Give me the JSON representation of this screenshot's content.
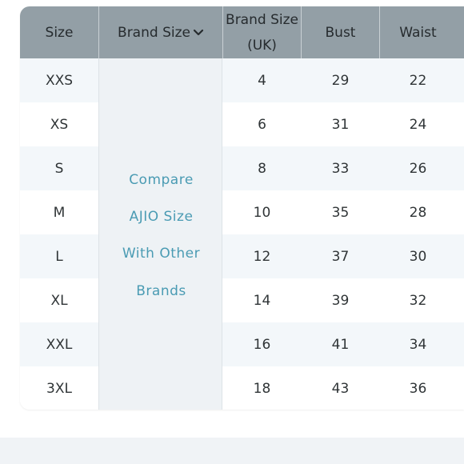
{
  "table": {
    "headers": {
      "size": "Size",
      "brand_size": "Brand Size",
      "brand_size_uk_line1": "Brand Size",
      "brand_size_uk_line2": "(UK)",
      "bust": "Bust",
      "waist": "Waist"
    },
    "brand_dropdown_icon": "chevron-down-icon",
    "compare_link": {
      "line1": "Compare",
      "line2": "AJIO Size",
      "line3": "With Other",
      "line4": "Brands"
    },
    "rows": [
      {
        "size": "XXS",
        "uk": "4",
        "bust": "29",
        "waist": "22"
      },
      {
        "size": "XS",
        "uk": "6",
        "bust": "31",
        "waist": "24"
      },
      {
        "size": "S",
        "uk": "8",
        "bust": "33",
        "waist": "26"
      },
      {
        "size": "M",
        "uk": "10",
        "bust": "35",
        "waist": "28"
      },
      {
        "size": "L",
        "uk": "12",
        "bust": "37",
        "waist": "30"
      },
      {
        "size": "XL",
        "uk": "14",
        "bust": "39",
        "waist": "32"
      },
      {
        "size": "XXL",
        "uk": "16",
        "bust": "41",
        "waist": "34"
      },
      {
        "size": "3XL",
        "uk": "18",
        "bust": "43",
        "waist": "36"
      }
    ]
  },
  "colors": {
    "header_bg": "#939fa6",
    "row_alt_bg": "#f3f7fa",
    "link_color": "#4a9bb3"
  }
}
